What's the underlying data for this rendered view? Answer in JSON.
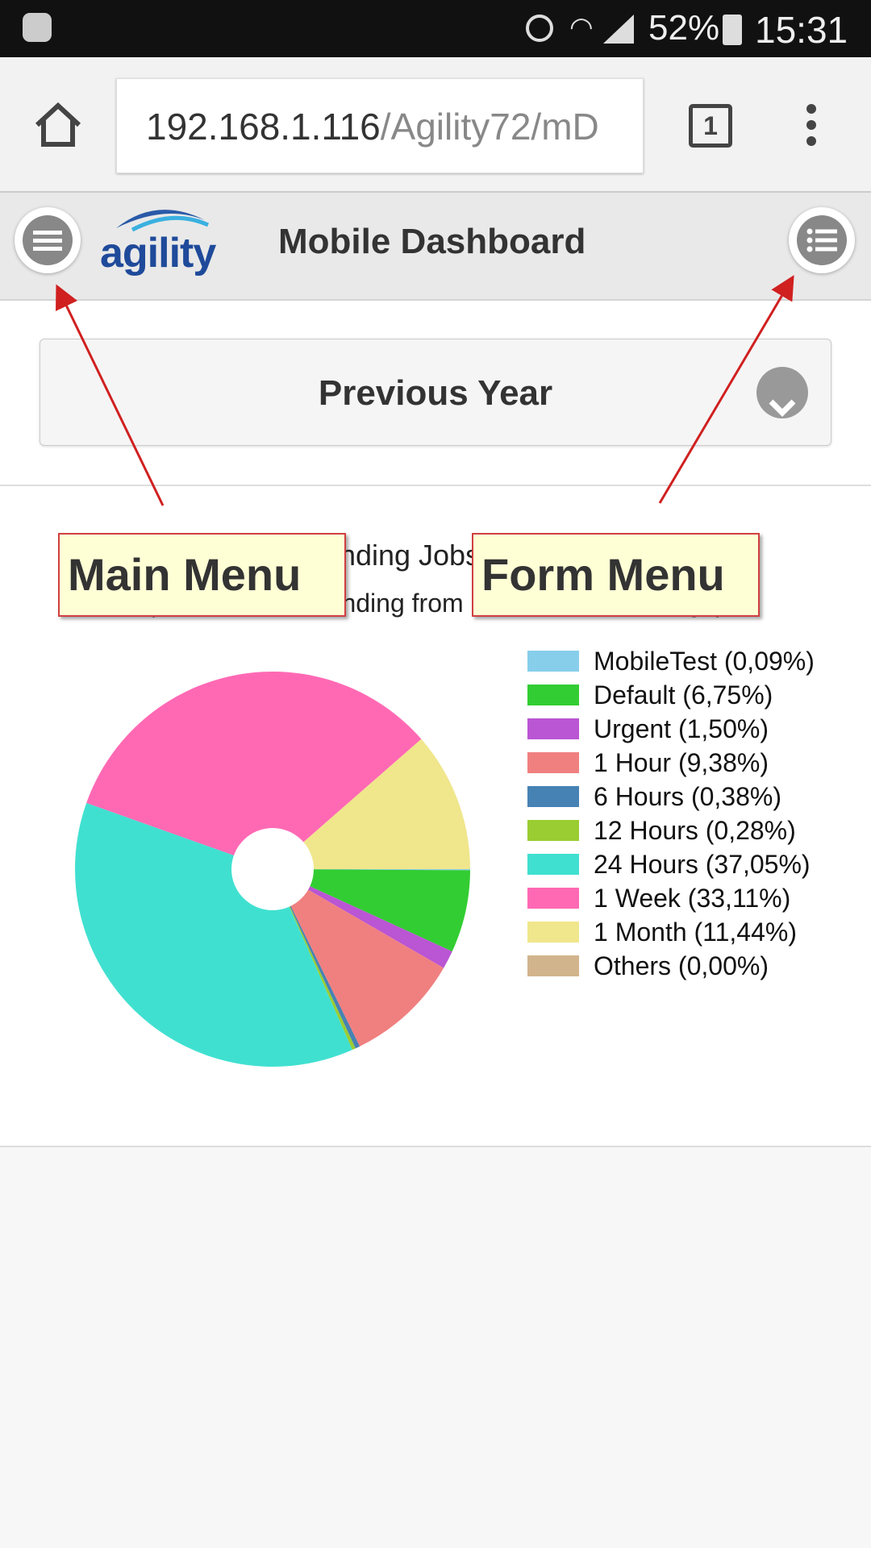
{
  "status_bar": {
    "battery": "52%",
    "time": "15:31",
    "icons": [
      "sync-icon",
      "alarm-icon",
      "wifi-icon",
      "signal-icon",
      "battery-icon"
    ]
  },
  "browser": {
    "url_host": "192.168.1.116",
    "url_path": "/Agility72/mD",
    "tab_count": "1"
  },
  "app": {
    "logo": "agility",
    "title": "Mobile Dashboard"
  },
  "filter": {
    "selected": "Previous Year"
  },
  "annotations": {
    "main_menu": "Main Menu",
    "form_menu": "Form Menu",
    "arrow_color": "#d02020"
  },
  "chart_data": {
    "type": "pie",
    "donut": true,
    "title": "Outstanding Jobs by Priority",
    "subtitle": "(Jobs Still Outstanding from Selected Date Range)",
    "legend_position": "right",
    "series": [
      {
        "name": "MobileTest",
        "value": 0.09,
        "label": "MobileTest (0,09%)",
        "color": "#87ceeb"
      },
      {
        "name": "Default",
        "value": 6.75,
        "label": "Default (6,75%)",
        "color": "#32cd32"
      },
      {
        "name": "Urgent",
        "value": 1.5,
        "label": "Urgent (1,50%)",
        "color": "#ba55d3"
      },
      {
        "name": "1 Hour",
        "value": 9.38,
        "label": "1 Hour (9,38%)",
        "color": "#f08080"
      },
      {
        "name": "6 Hours",
        "value": 0.38,
        "label": "6 Hours (0,38%)",
        "color": "#4682b4"
      },
      {
        "name": "12 Hours",
        "value": 0.28,
        "label": "12 Hours (0,28%)",
        "color": "#9acd32"
      },
      {
        "name": "24 Hours",
        "value": 37.05,
        "label": "24 Hours (37,05%)",
        "color": "#40e0d0"
      },
      {
        "name": "1 Week",
        "value": 33.11,
        "label": "1 Week (33,11%)",
        "color": "#ff69b4"
      },
      {
        "name": "1 Month",
        "value": 11.44,
        "label": "1 Month (11,44%)",
        "color": "#f0e68c"
      },
      {
        "name": "Others",
        "value": 0.0,
        "label": "Others (0,00%)",
        "color": "#d2b48c"
      }
    ]
  }
}
